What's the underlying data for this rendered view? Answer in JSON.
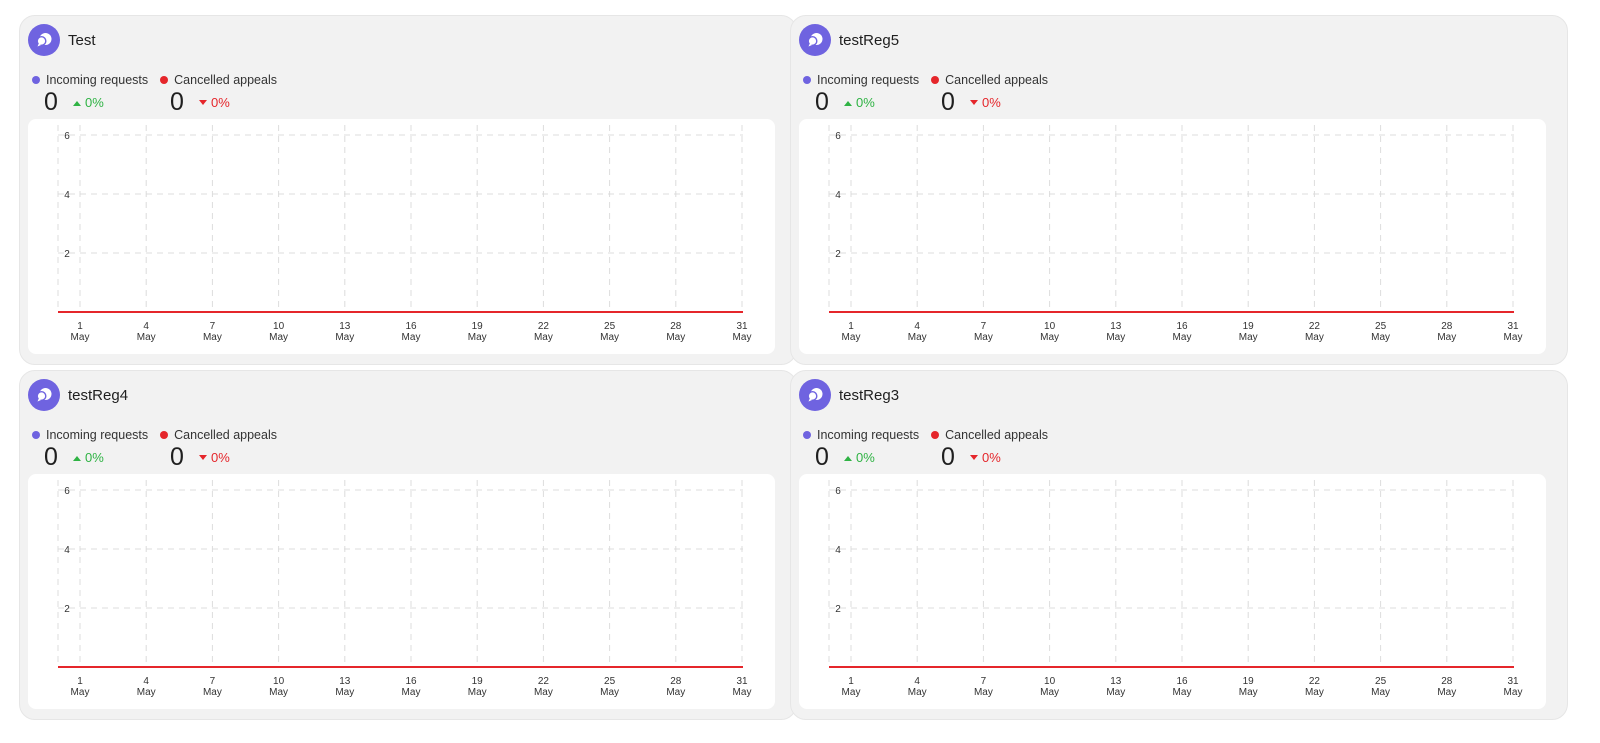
{
  "colors": {
    "accent": "#6f63e0",
    "incoming": "#6f63e0",
    "cancelled": "#e5262b",
    "positive": "#2fb344",
    "negative": "#e5262b"
  },
  "cards": [
    {
      "title": "Test",
      "avatar_icon": "chat-bubbles-icon",
      "legend": {
        "incoming": "Incoming requests",
        "cancelled": "Cancelled appeals"
      },
      "metrics": {
        "incoming": {
          "value": "0",
          "change": "0%",
          "trend_icon": "triangle-up-icon"
        },
        "cancelled": {
          "value": "0",
          "change": "0%",
          "trend_icon": "triangle-down-icon"
        }
      },
      "chart_data": {
        "type": "line",
        "x": [
          "1",
          "4",
          "7",
          "10",
          "13",
          "16",
          "19",
          "22",
          "25",
          "28",
          "31"
        ],
        "x_sub": "May",
        "yticks": [
          "2",
          "4",
          "6"
        ],
        "ylim": [
          0,
          6
        ],
        "grid": true,
        "series": [
          {
            "name": "Incoming requests",
            "color": "#6f63e0",
            "values": [
              0,
              0,
              0,
              0,
              0,
              0,
              0,
              0,
              0,
              0,
              0
            ]
          },
          {
            "name": "Cancelled appeals",
            "color": "#e5262b",
            "values": [
              0,
              0,
              0,
              0,
              0,
              0,
              0,
              0,
              0,
              0,
              0
            ]
          }
        ]
      }
    },
    {
      "title": "testReg5",
      "avatar_icon": "chat-bubbles-icon",
      "legend": {
        "incoming": "Incoming requests",
        "cancelled": "Cancelled appeals"
      },
      "metrics": {
        "incoming": {
          "value": "0",
          "change": "0%",
          "trend_icon": "triangle-up-icon"
        },
        "cancelled": {
          "value": "0",
          "change": "0%",
          "trend_icon": "triangle-down-icon"
        }
      },
      "chart_data": {
        "type": "line",
        "x": [
          "1",
          "4",
          "7",
          "10",
          "13",
          "16",
          "19",
          "22",
          "25",
          "28",
          "31"
        ],
        "x_sub": "May",
        "yticks": [
          "2",
          "4",
          "6"
        ],
        "ylim": [
          0,
          6
        ],
        "grid": true,
        "series": [
          {
            "name": "Incoming requests",
            "color": "#6f63e0",
            "values": [
              0,
              0,
              0,
              0,
              0,
              0,
              0,
              0,
              0,
              0,
              0
            ]
          },
          {
            "name": "Cancelled appeals",
            "color": "#e5262b",
            "values": [
              0,
              0,
              0,
              0,
              0,
              0,
              0,
              0,
              0,
              0,
              0
            ]
          }
        ]
      }
    },
    {
      "title": "testReg4",
      "avatar_icon": "chat-bubbles-icon",
      "legend": {
        "incoming": "Incoming requests",
        "cancelled": "Cancelled appeals"
      },
      "metrics": {
        "incoming": {
          "value": "0",
          "change": "0%",
          "trend_icon": "triangle-up-icon"
        },
        "cancelled": {
          "value": "0",
          "change": "0%",
          "trend_icon": "triangle-down-icon"
        }
      },
      "chart_data": {
        "type": "line",
        "x": [
          "1",
          "4",
          "7",
          "10",
          "13",
          "16",
          "19",
          "22",
          "25",
          "28",
          "31"
        ],
        "x_sub": "May",
        "yticks": [
          "2",
          "4",
          "6"
        ],
        "ylim": [
          0,
          6
        ],
        "grid": true,
        "series": [
          {
            "name": "Incoming requests",
            "color": "#6f63e0",
            "values": [
              0,
              0,
              0,
              0,
              0,
              0,
              0,
              0,
              0,
              0,
              0
            ]
          },
          {
            "name": "Cancelled appeals",
            "color": "#e5262b",
            "values": [
              0,
              0,
              0,
              0,
              0,
              0,
              0,
              0,
              0,
              0,
              0
            ]
          }
        ]
      }
    },
    {
      "title": "testReg3",
      "avatar_icon": "chat-bubbles-icon",
      "legend": {
        "incoming": "Incoming requests",
        "cancelled": "Cancelled appeals"
      },
      "metrics": {
        "incoming": {
          "value": "0",
          "change": "0%",
          "trend_icon": "triangle-up-icon"
        },
        "cancelled": {
          "value": "0",
          "change": "0%",
          "trend_icon": "triangle-down-icon"
        }
      },
      "chart_data": {
        "type": "line",
        "x": [
          "1",
          "4",
          "7",
          "10",
          "13",
          "16",
          "19",
          "22",
          "25",
          "28",
          "31"
        ],
        "x_sub": "May",
        "yticks": [
          "2",
          "4",
          "6"
        ],
        "ylim": [
          0,
          6
        ],
        "grid": true,
        "series": [
          {
            "name": "Incoming requests",
            "color": "#6f63e0",
            "values": [
              0,
              0,
              0,
              0,
              0,
              0,
              0,
              0,
              0,
              0,
              0
            ]
          },
          {
            "name": "Cancelled appeals",
            "color": "#e5262b",
            "values": [
              0,
              0,
              0,
              0,
              0,
              0,
              0,
              0,
              0,
              0,
              0
            ]
          }
        ]
      }
    }
  ]
}
